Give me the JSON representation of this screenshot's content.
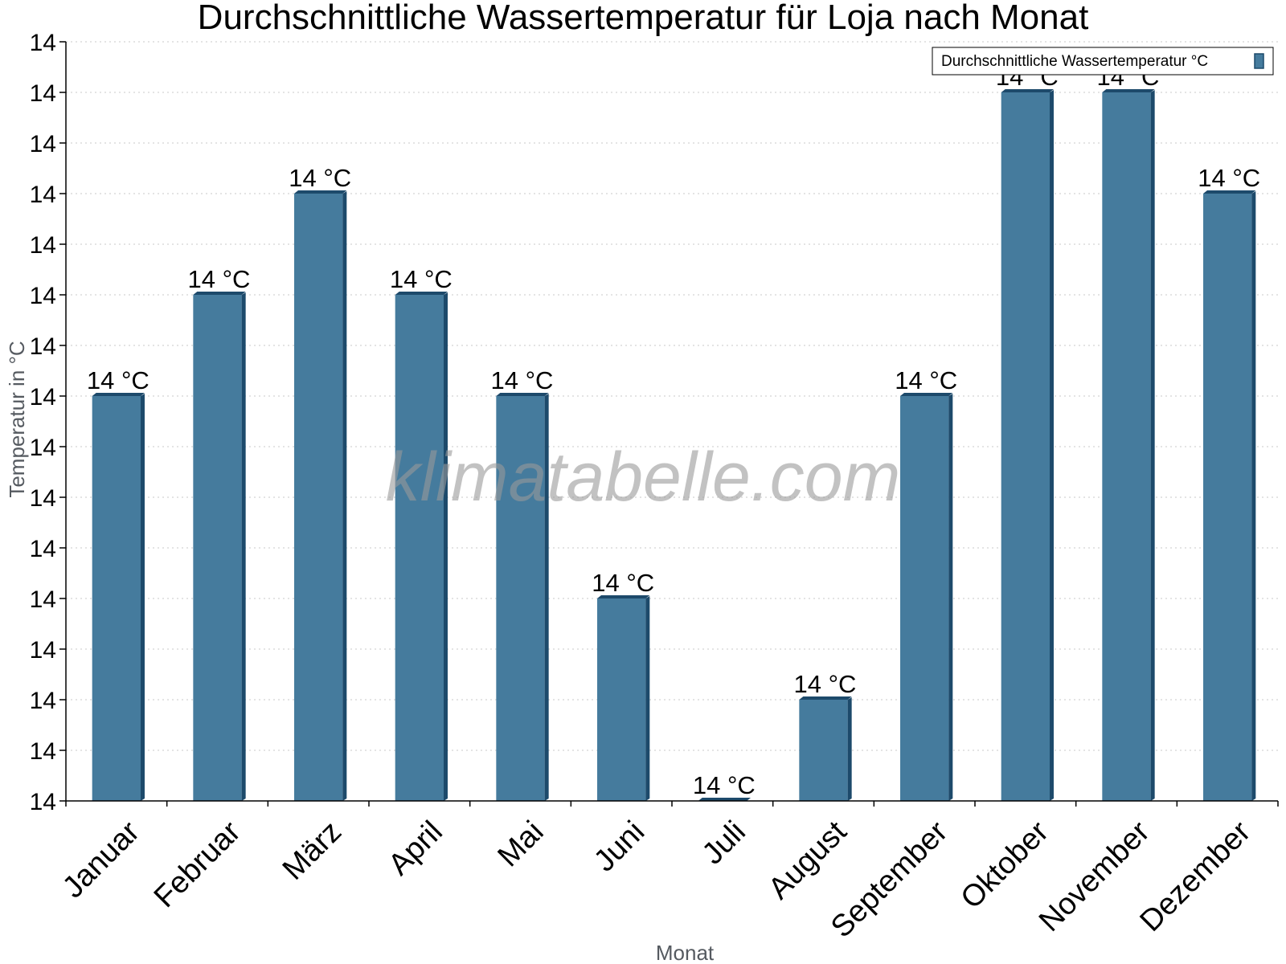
{
  "chart_data": {
    "type": "bar",
    "title": "Durchschnittliche Wassertemperatur für Loja nach Monat",
    "xlabel": "Monat",
    "ylabel": "Temperatur in °C",
    "categories": [
      "Januar",
      "Februar",
      "März",
      "April",
      "Mai",
      "Juni",
      "Juli",
      "August",
      "September",
      "Oktober",
      "November",
      "Dezember"
    ],
    "series": [
      {
        "name": "Durchschnittliche Wassertemperatur °C",
        "values": [
          14,
          14,
          14,
          14,
          14,
          14,
          14,
          14,
          14,
          14,
          14,
          14
        ],
        "relative_levels": [
          8,
          10,
          12,
          10,
          8,
          4,
          0,
          2,
          8,
          14,
          14,
          12
        ],
        "labels": [
          "14 °C",
          "14 °C",
          "14 °C",
          "14 °C",
          "14 °C",
          "14 °C",
          "14 °C",
          "14 °C",
          "14 °C",
          "14 °C",
          "14 °C",
          "14 °C"
        ],
        "color": "#457b9d",
        "edge_color": "#1d4a6b"
      }
    ],
    "y_tick_labels": [
      "14",
      "14",
      "14",
      "14",
      "14",
      "14",
      "14",
      "14",
      "14",
      "14",
      "14",
      "14",
      "14",
      "14",
      "14",
      "14"
    ],
    "level_range": [
      0,
      15
    ],
    "grid": true,
    "legend_position": "top-right"
  },
  "watermark": "klimatabelle.com"
}
